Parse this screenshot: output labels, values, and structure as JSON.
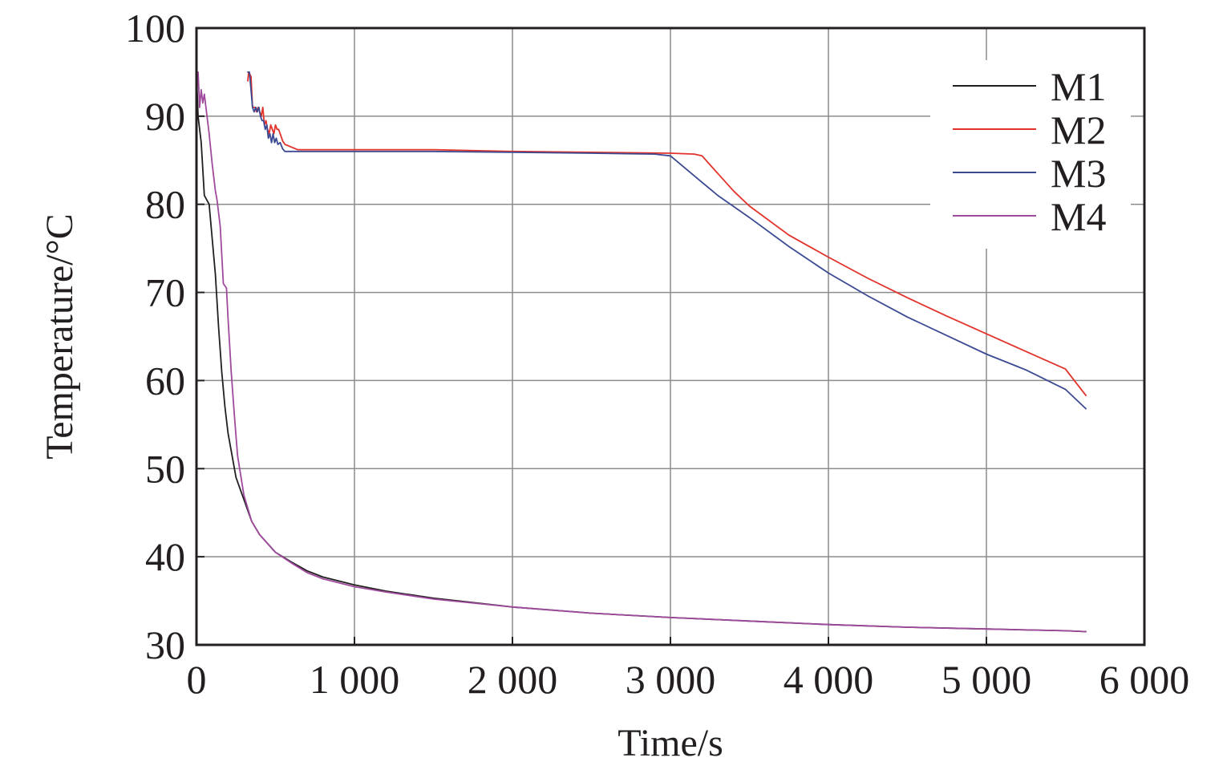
{
  "chart_data": {
    "type": "line",
    "title": "",
    "xlabel": "Time/s",
    "ylabel": "Temperature/°C",
    "xlim": [
      0,
      6000
    ],
    "ylim": [
      30,
      100
    ],
    "x_ticks": [
      0,
      1000,
      2000,
      3000,
      4000,
      5000,
      6000
    ],
    "x_tick_labels": [
      "0",
      "1 000",
      "2 000",
      "3 000",
      "4 000",
      "5 000",
      "6 000"
    ],
    "y_ticks": [
      30,
      40,
      50,
      60,
      70,
      80,
      90,
      100
    ],
    "y_tick_labels": [
      "30",
      "40",
      "50",
      "60",
      "70",
      "80",
      "90",
      "100"
    ],
    "grid": true,
    "legend_position": "top-right",
    "series": [
      {
        "name": "M1",
        "color": "#231f20",
        "points": [
          [
            0,
            95
          ],
          [
            10,
            90
          ],
          [
            30,
            87
          ],
          [
            50,
            81
          ],
          [
            80,
            80
          ],
          [
            100,
            76
          ],
          [
            120,
            72
          ],
          [
            140,
            66
          ],
          [
            160,
            61
          ],
          [
            180,
            57
          ],
          [
            200,
            54
          ],
          [
            250,
            49
          ],
          [
            300,
            46.5
          ],
          [
            350,
            44
          ],
          [
            400,
            42.5
          ],
          [
            500,
            40.5
          ],
          [
            600,
            39.4
          ],
          [
            700,
            38.4
          ],
          [
            800,
            37.7
          ],
          [
            1000,
            36.8
          ],
          [
            1200,
            36.1
          ],
          [
            1500,
            35.3
          ],
          [
            2000,
            34.3
          ],
          [
            2500,
            33.6
          ],
          [
            3000,
            33.1
          ],
          [
            3500,
            32.7
          ],
          [
            4000,
            32.3
          ],
          [
            4500,
            32
          ],
          [
            5000,
            31.8
          ],
          [
            5500,
            31.6
          ],
          [
            5630,
            31.5
          ]
        ]
      },
      {
        "name": "M2",
        "color": "#e2322a",
        "points": [
          [
            325,
            94
          ],
          [
            330,
            95
          ],
          [
            345,
            94.5
          ],
          [
            355,
            91
          ],
          [
            370,
            91
          ],
          [
            380,
            90.5
          ],
          [
            390,
            91
          ],
          [
            400,
            90.5
          ],
          [
            410,
            90
          ],
          [
            420,
            91
          ],
          [
            430,
            89
          ],
          [
            440,
            89.5
          ],
          [
            450,
            88.5
          ],
          [
            460,
            88
          ],
          [
            470,
            89
          ],
          [
            480,
            88.5
          ],
          [
            490,
            88
          ],
          [
            500,
            89
          ],
          [
            510,
            88.5
          ],
          [
            520,
            88.5
          ],
          [
            530,
            88
          ],
          [
            545,
            87.2
          ],
          [
            560,
            86.8
          ],
          [
            600,
            86.5
          ],
          [
            640,
            86.2
          ],
          [
            1000,
            86.2
          ],
          [
            1500,
            86.2
          ],
          [
            2000,
            86
          ],
          [
            2500,
            85.9
          ],
          [
            3000,
            85.8
          ],
          [
            3150,
            85.7
          ],
          [
            3200,
            85.5
          ],
          [
            3300,
            83.5
          ],
          [
            3400,
            81.5
          ],
          [
            3500,
            79.8
          ],
          [
            3750,
            76.5
          ],
          [
            4000,
            74
          ],
          [
            4250,
            71.6
          ],
          [
            4500,
            69.4
          ],
          [
            4750,
            67.3
          ],
          [
            5000,
            65.3
          ],
          [
            5250,
            63.3
          ],
          [
            5500,
            61.3
          ],
          [
            5630,
            58.3
          ]
        ]
      },
      {
        "name": "M3",
        "color": "#3b4a92",
        "points": [
          [
            325,
            95
          ],
          [
            335,
            95
          ],
          [
            345,
            93
          ],
          [
            355,
            91
          ],
          [
            365,
            90.5
          ],
          [
            375,
            91
          ],
          [
            385,
            90.5
          ],
          [
            395,
            91
          ],
          [
            405,
            90
          ],
          [
            415,
            89.5
          ],
          [
            425,
            89.5
          ],
          [
            435,
            88.5
          ],
          [
            445,
            89
          ],
          [
            455,
            87.5
          ],
          [
            465,
            88
          ],
          [
            475,
            87
          ],
          [
            485,
            88
          ],
          [
            495,
            87
          ],
          [
            505,
            87.5
          ],
          [
            515,
            86.8
          ],
          [
            530,
            87
          ],
          [
            545,
            86.3
          ],
          [
            560,
            86
          ],
          [
            580,
            86
          ],
          [
            1000,
            86
          ],
          [
            1500,
            86
          ],
          [
            2000,
            85.9
          ],
          [
            2500,
            85.8
          ],
          [
            2900,
            85.7
          ],
          [
            3000,
            85.5
          ],
          [
            3100,
            84
          ],
          [
            3200,
            82.5
          ],
          [
            3300,
            81
          ],
          [
            3500,
            78.5
          ],
          [
            3750,
            75.2
          ],
          [
            4000,
            72.2
          ],
          [
            4250,
            69.6
          ],
          [
            4500,
            67.2
          ],
          [
            4750,
            65.1
          ],
          [
            5000,
            63
          ],
          [
            5250,
            61.2
          ],
          [
            5500,
            59
          ],
          [
            5630,
            56.8
          ]
        ]
      },
      {
        "name": "M4",
        "color": "#a04a9e",
        "points": [
          [
            0,
            92
          ],
          [
            10,
            95
          ],
          [
            20,
            91
          ],
          [
            30,
            93
          ],
          [
            40,
            91.5
          ],
          [
            50,
            92.5
          ],
          [
            60,
            91
          ],
          [
            80,
            88
          ],
          [
            100,
            84.5
          ],
          [
            120,
            81.5
          ],
          [
            130,
            80.5
          ],
          [
            150,
            77.5
          ],
          [
            170,
            71
          ],
          [
            190,
            70.5
          ],
          [
            200,
            67
          ],
          [
            220,
            61
          ],
          [
            240,
            56
          ],
          [
            260,
            51.5
          ],
          [
            300,
            47
          ],
          [
            350,
            44
          ],
          [
            400,
            42.5
          ],
          [
            500,
            40.5
          ],
          [
            600,
            39.3
          ],
          [
            700,
            38.2
          ],
          [
            800,
            37.5
          ],
          [
            1000,
            36.6
          ],
          [
            1200,
            36
          ],
          [
            1500,
            35.2
          ],
          [
            2000,
            34.3
          ],
          [
            2500,
            33.6
          ],
          [
            3000,
            33.1
          ],
          [
            3500,
            32.7
          ],
          [
            4000,
            32.3
          ],
          [
            4500,
            32
          ],
          [
            5000,
            31.8
          ],
          [
            5500,
            31.6
          ],
          [
            5630,
            31.5
          ]
        ]
      }
    ]
  }
}
